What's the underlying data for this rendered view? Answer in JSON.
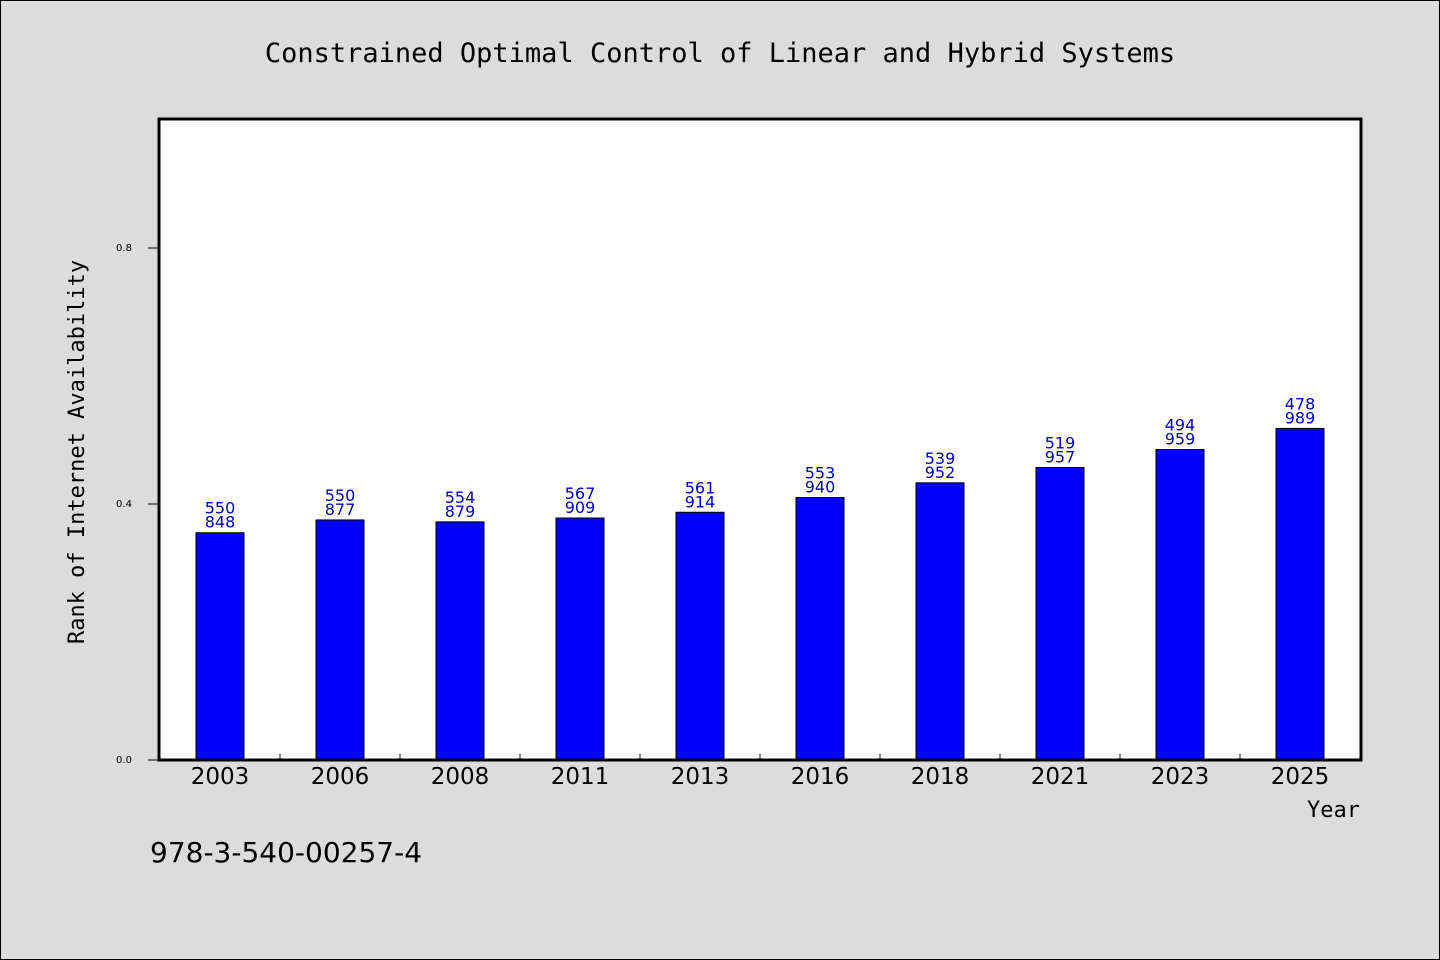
{
  "chart_data": {
    "type": "bar",
    "title": "Constrained Optimal Control of Linear and Hybrid Systems",
    "xlabel": "Year",
    "ylabel": "Rank of Internet Availability",
    "categories": [
      "2003",
      "2006",
      "2008",
      "2011",
      "2013",
      "2016",
      "2018",
      "2021",
      "2023",
      "2025"
    ],
    "values": [
      0.3550848,
      0.3750877,
      0.3720879,
      0.3780909,
      0.3870914,
      0.410094,
      0.4330952,
      0.4570957,
      0.4850959,
      0.5180989
    ],
    "data_labels": [
      [
        "550",
        "848"
      ],
      [
        "550",
        "877"
      ],
      [
        "554",
        "879"
      ],
      [
        "567",
        "909"
      ],
      [
        "561",
        "914"
      ],
      [
        "553",
        "940"
      ],
      [
        "539",
        "952"
      ],
      [
        "519",
        "957"
      ],
      [
        "494",
        "959"
      ],
      [
        "478",
        "989"
      ]
    ],
    "ylim": [
      0,
      1.0
    ],
    "yticks": [
      0.0,
      0.4,
      0.8
    ],
    "ytick_labels": [
      "0.0",
      "0.4",
      "0.8"
    ],
    "bar_color": "#0000ff",
    "label_color": "#0000cc",
    "plot_background": "#ffffff",
    "page_background": "#dcdcdc",
    "grid": false,
    "legend": "none"
  },
  "footnote": "978-3-540-00257-4"
}
